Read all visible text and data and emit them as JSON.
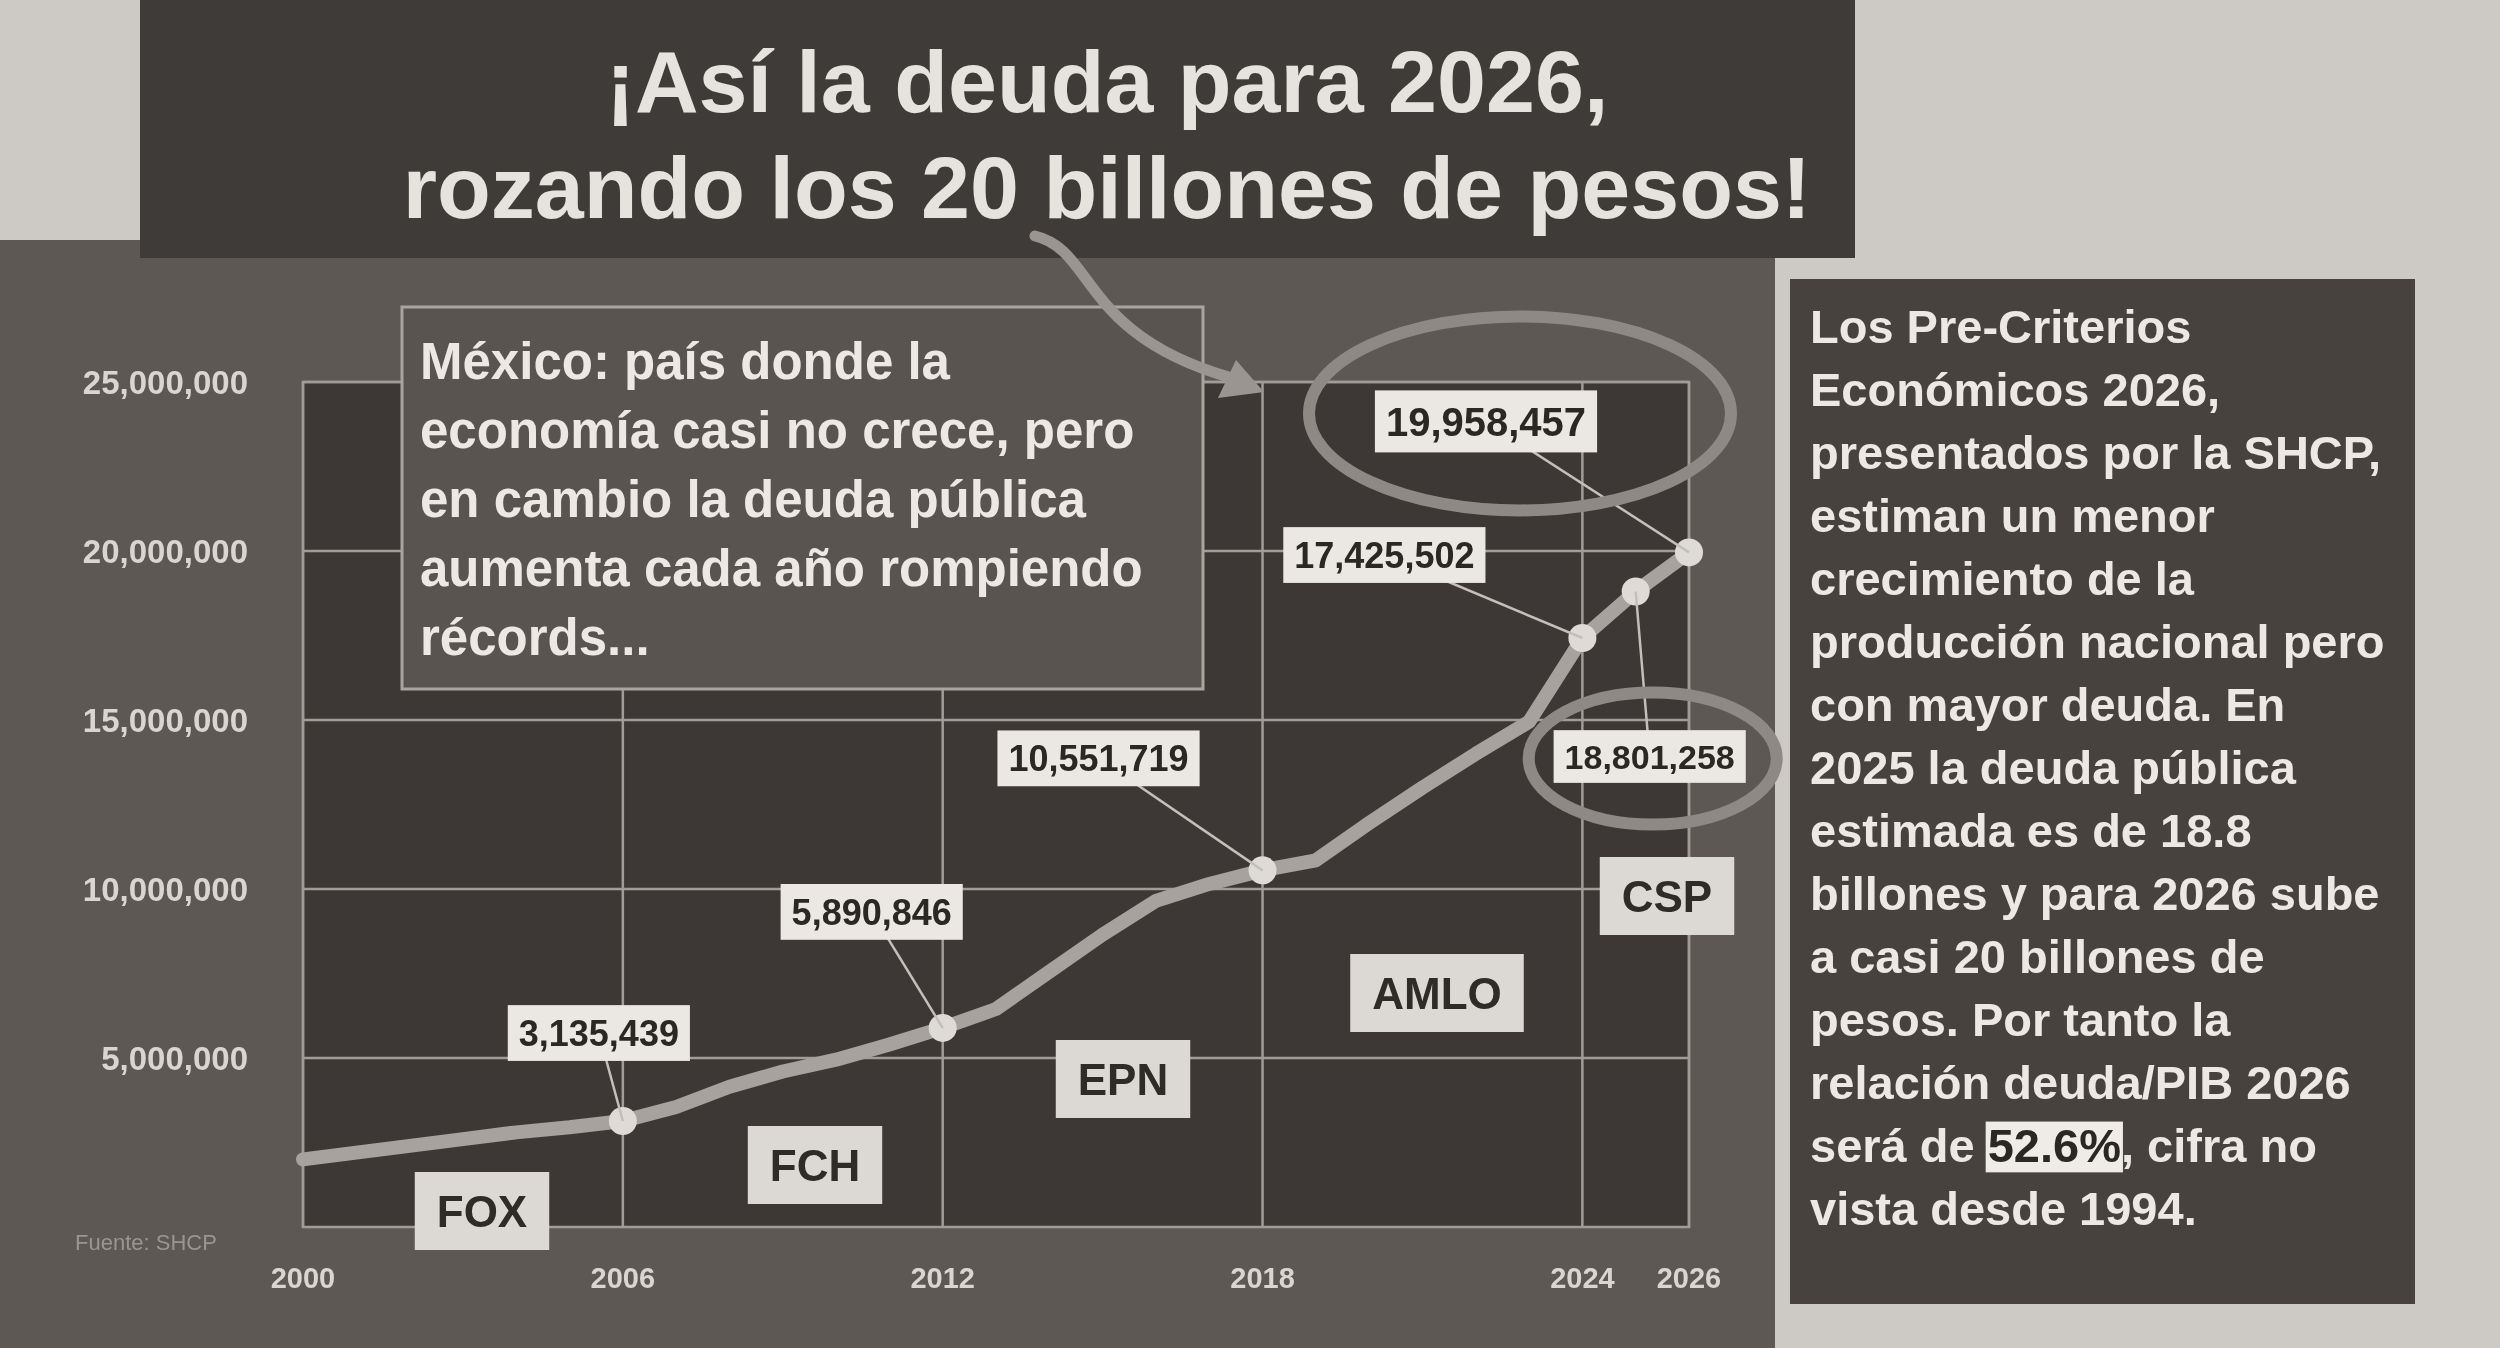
{
  "chart_data": {
    "type": "line",
    "title": "¡Así la deuda para 2026, rozando los 20 billones de pesos!",
    "x": [
      2000,
      2001,
      2002,
      2003,
      2004,
      2005,
      2006,
      2007,
      2008,
      2009,
      2010,
      2011,
      2012,
      2013,
      2014,
      2015,
      2016,
      2017,
      2018,
      2019,
      2020,
      2021,
      2022,
      2023,
      2024,
      2025,
      2026
    ],
    "xlim": [
      2000,
      2026
    ],
    "xticks": [
      2000,
      2006,
      2012,
      2018,
      2024,
      2026
    ],
    "ylim": [
      0,
      25000000
    ],
    "yticks": [
      {
        "value": 5000000,
        "label": "5,000,000"
      },
      {
        "value": 10000000,
        "label": "10,000,000"
      },
      {
        "value": 15000000,
        "label": "15,000,000"
      },
      {
        "value": 20000000,
        "label": "20,000,000"
      },
      {
        "value": 25000000,
        "label": "25,000,000"
      }
    ],
    "grid": true,
    "series": [
      {
        "type": "line",
        "color": "#a7a29d",
        "values": [
          2000000,
          2200000,
          2400000,
          2600000,
          2800000,
          2950000,
          3135439,
          3550000,
          4150000,
          4600000,
          4950000,
          5400000,
          5890846,
          6450000,
          7550000,
          8650000,
          9650000,
          10150000,
          10551719,
          10850000,
          11950000,
          13000000,
          14000000,
          14950000,
          17425502,
          18801258,
          19958457
        ]
      },
      {
        "type": "scatter",
        "color": "#dedad6",
        "marker": "circle",
        "x": [
          2006,
          2012,
          2018,
          2024,
          2025,
          2026
        ],
        "values": [
          3135439,
          5890846,
          10551719,
          17425502,
          18801258,
          19958457
        ],
        "value_labels": [
          "3,135,439",
          "5,890,846",
          "10,551,719",
          "17,425,502",
          "18,801,258",
          "19,958,457"
        ]
      }
    ],
    "annotations": [
      "México: país donde la economía casi no crece, pero en cambio la deuda pública aumenta cada año rompiendo récords...",
      "FOX",
      "FCH",
      "EPN",
      "AMLO",
      "CSP",
      "Fuente: SHCP",
      "Los Pre-Criterios Económicos 2026, presentados por la SHCP, estiman un menor crecimiento de la producción nacional pero con mayor deuda. En 2025 la deuda pública estimada es de 18.8 billones y para 2026 sube a casi 20 billones de pesos. Por tanto la relación deuda/PIB 2026 será de 52.6%, cifra no vista desde 1994."
    ]
  }
}
